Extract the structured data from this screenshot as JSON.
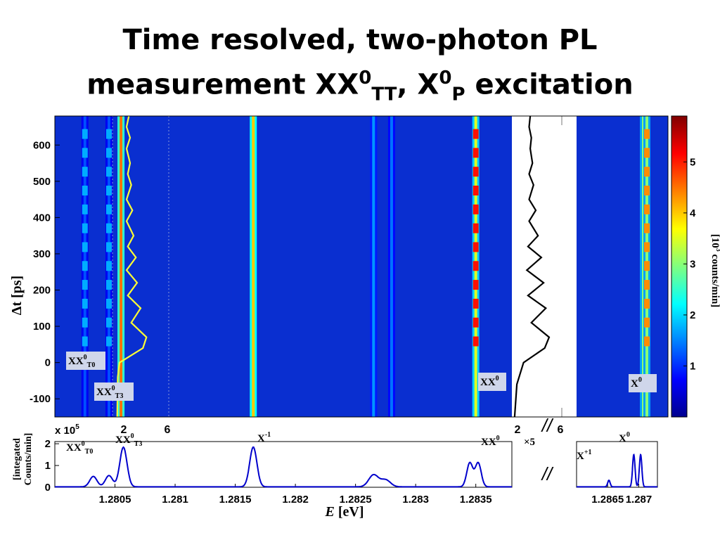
{
  "slide": {
    "title_line1": "Time resolved, two-photon PL",
    "title_line2_prefix": "measurement XX",
    "title_sup1": "0",
    "title_sub1": "TT",
    "title_sep": ", X",
    "title_sup2": "0",
    "title_sub2": "P",
    "title_suffix": " excitation"
  },
  "colors": {
    "map_background": "#0a2fd0",
    "trace_left": "#ffff33",
    "trace_right": "#000000",
    "spectrum_line": "#0000cc",
    "label_box": "#cfd6ea"
  },
  "chart_data": [
    {
      "type": "heatmap",
      "name": "time-resolved-map",
      "ylabel": "Δt [ps]",
      "ylim": [
        -150,
        680
      ],
      "yticks": [
        "600",
        "500",
        "400",
        "300",
        "200",
        "100",
        "0",
        "-100"
      ],
      "ytick_values": [
        600,
        500,
        400,
        300,
        200,
        100,
        0,
        -100
      ],
      "panels": [
        {
          "xlim": [
            1.28,
            1.2838
          ]
        },
        {
          "xlim": [
            1.286,
            1.2873
          ]
        }
      ],
      "line_labels": [
        {
          "label": "XX",
          "sup": "0",
          "sub": "T0",
          "energy": 1.2804
        },
        {
          "label": "XX",
          "sup": "0",
          "sub": "T3",
          "energy": 1.28055
        },
        {
          "label": "XX",
          "sup": "0",
          "sub": "",
          "energy": 1.2835
        },
        {
          "label": "X",
          "sup": "0",
          "sub": "",
          "energy": 1.2869
        }
      ],
      "lines": [
        {
          "energy": 1.28025,
          "intensity": 1.2,
          "modulated": true
        },
        {
          "energy": 1.28045,
          "intensity": 1.2,
          "modulated": true
        },
        {
          "energy": 1.28055,
          "intensity": 4.5,
          "modulated": false
        },
        {
          "energy": 1.28165,
          "intensity": 4.0,
          "modulated": false
        },
        {
          "energy": 1.28265,
          "intensity": 1.6,
          "modulated": false
        },
        {
          "energy": 1.2828,
          "intensity": 1.4,
          "modulated": false
        },
        {
          "energy": 1.2835,
          "intensity": 3.5,
          "modulated": true
        },
        {
          "energy": 1.28695,
          "intensity": 3.0,
          "modulated": false
        },
        {
          "energy": 1.287,
          "intensity": 3.0,
          "modulated": true
        }
      ],
      "trace_top_labels": [
        "2",
        "6",
        "2",
        "6"
      ],
      "break_mark": "//",
      "traces": [
        {
          "name": "",
          "dt": [
            -150,
            -40,
            0,
            40,
            70,
            110,
            150,
            185,
            220,
            255,
            290,
            320,
            350,
            390,
            420,
            450,
            490,
            520,
            550,
            590,
            620,
            650,
            680
          ],
          "value": [
            2.0,
            2.05,
            2.2,
            4.2,
            4.5,
            3.2,
            4.0,
            2.9,
            3.7,
            2.8,
            3.6,
            2.9,
            3.4,
            2.8,
            3.3,
            2.8,
            3.2,
            2.9,
            3.1,
            2.8,
            3.1,
            2.8,
            3.0
          ]
        },
        {
          "name": "",
          "dt": [
            -150,
            -60,
            0,
            40,
            70,
            110,
            150,
            185,
            220,
            255,
            290,
            320,
            350,
            390,
            420,
            450,
            490,
            520,
            550,
            590,
            620,
            650,
            680
          ],
          "value": [
            2.1,
            2.3,
            2.9,
            4.8,
            5.2,
            3.6,
            4.9,
            3.3,
            4.7,
            3.2,
            4.5,
            3.3,
            4.2,
            3.4,
            4.0,
            3.4,
            3.8,
            3.4,
            3.7,
            3.5,
            3.6,
            3.4,
            3.5
          ]
        }
      ]
    },
    {
      "type": "colorbar",
      "name": "colorbar",
      "label_pre": "[10",
      "label_sup": "3",
      "label_post": " counts/min]",
      "range": [
        0,
        5.9
      ],
      "ticks": [
        "1",
        "2",
        "3",
        "4",
        "5"
      ],
      "tick_values": [
        1,
        2,
        3,
        4,
        5
      ]
    },
    {
      "type": "line",
      "name": "integrated-spectrum",
      "xlabel_italic": "E",
      "xlabel_rest": " [eV]",
      "ylabel_line1": "[integated",
      "ylabel_line2": "Counts/min]",
      "y_multiplier": "x 10",
      "y_multiplier_exp": "5",
      "ylim": [
        0,
        2.1
      ],
      "yticks": [
        "2",
        "1",
        "0"
      ],
      "ytick_values": [
        2,
        1,
        0
      ],
      "xticks": [
        "1.2805",
        "1.281",
        "1.2815",
        "1.282",
        "1.2825",
        "1.283",
        "1.2835",
        "1.2865",
        "1.287"
      ],
      "xtick_values": [
        1.2805,
        1.281,
        1.2815,
        1.282,
        1.2825,
        1.283,
        1.2835,
        1.2865,
        1.287
      ],
      "panels": [
        {
          "xlim": [
            1.28,
            1.2838
          ]
        },
        {
          "xlim": [
            1.286,
            1.2873
          ]
        }
      ],
      "scale_note": "×5",
      "break_mark": "//",
      "peak_labels": [
        {
          "label": "XX",
          "sup": "0",
          "sub": "T0",
          "energy": 1.28025
        },
        {
          "label": "XX",
          "sup": "0",
          "sub": "T3",
          "energy": 1.28085
        },
        {
          "label": "X",
          "sup": "-1",
          "sub": "",
          "energy": 1.28165
        },
        {
          "label": "XX",
          "sup": "0",
          "sub": "",
          "energy": 1.2835
        },
        {
          "label": "X",
          "sup": "+1",
          "sub": "",
          "energy": 1.28655
        },
        {
          "label": "X",
          "sup": "0",
          "sub": "",
          "energy": 1.28695
        }
      ],
      "peaks": [
        {
          "center": 1.28032,
          "height": 0.48,
          "width": 3e-05
        },
        {
          "center": 1.28045,
          "height": 0.52,
          "width": 3e-05
        },
        {
          "center": 1.28057,
          "height": 1.82,
          "width": 3e-05
        },
        {
          "center": 1.28165,
          "height": 1.83,
          "width": 3e-05
        },
        {
          "center": 1.28265,
          "height": 0.55,
          "width": 4e-05
        },
        {
          "center": 1.28275,
          "height": 0.32,
          "width": 4e-05
        },
        {
          "center": 1.28345,
          "height": 1.1,
          "width": 2.5e-05
        },
        {
          "center": 1.28352,
          "height": 1.1,
          "width": 2.5e-05
        },
        {
          "center": 1.28652,
          "height": 0.3,
          "width": 2e-05
        },
        {
          "center": 1.28692,
          "height": 1.48,
          "width": 2e-05
        },
        {
          "center": 1.28703,
          "height": 1.48,
          "width": 2e-05
        }
      ]
    }
  ]
}
